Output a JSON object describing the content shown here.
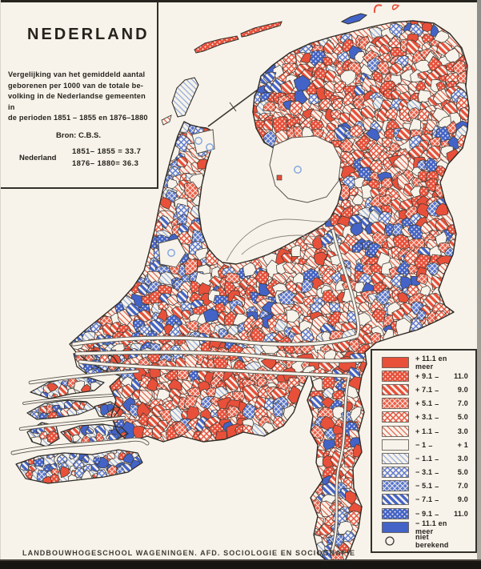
{
  "title_box": {
    "title": "NEDERLAND",
    "description_lines": [
      "Vergelijking van het gemiddeld aantal",
      "geborenen per 1000 van de totale be-",
      "volking in de Nederlandse gemeenten in",
      "de perioden  1851 – 1855  en 1876–1880"
    ],
    "source": "Bron: C.B.S.",
    "country_label": "Nederland",
    "stat_lines": [
      "1851– 1855 = 33.7",
      "1876– 1880=  36.3"
    ]
  },
  "legend": {
    "items": [
      {
        "pattern": "red-solid",
        "a": "+ 11.1 en meer",
        "sep": "",
        "b": ""
      },
      {
        "pattern": "red-dots",
        "a": "+ 9.1",
        "sep": "–",
        "b": "11.0"
      },
      {
        "pattern": "red-diag",
        "a": "+ 7.1",
        "sep": "–",
        "b": "9.0"
      },
      {
        "pattern": "red-cross",
        "a": "+ 5.1",
        "sep": "–",
        "b": "7.0"
      },
      {
        "pattern": "red-check",
        "a": "+ 3.1",
        "sep": "–",
        "b": "5.0"
      },
      {
        "pattern": "red-lt",
        "a": "+ 1.1",
        "sep": "–",
        "b": "3.0"
      },
      {
        "pattern": "white",
        "a": "−  1",
        "sep": "–",
        "b": "+  1"
      },
      {
        "pattern": "blue-lt",
        "a": "− 1.1",
        "sep": "–",
        "b": "3.0"
      },
      {
        "pattern": "blue-check",
        "a": "− 3.1",
        "sep": "–",
        "b": "5.0"
      },
      {
        "pattern": "blue-cross",
        "a": "− 5.1",
        "sep": "–",
        "b": "7.0"
      },
      {
        "pattern": "blue-diag",
        "a": "− 7.1",
        "sep": "–",
        "b": "9.0"
      },
      {
        "pattern": "blue-dots",
        "a": "− 9.1",
        "sep": "–",
        "b": "11.0"
      },
      {
        "pattern": "blue-solid",
        "a": "− 11.1 en meer",
        "sep": "",
        "b": ""
      },
      {
        "pattern": "circle",
        "a": "niet berekend",
        "sep": "",
        "b": ""
      }
    ]
  },
  "footer": {
    "credit": "LANDBOUWHOGESCHOOL WAGENINGEN. AFD. SOCIOLOGIE EN SOCIOGRAFIE"
  },
  "colors": {
    "red": "#e8503a",
    "red_mid": "#ec614b",
    "blue": "#4363c7",
    "blue_mid": "#5b78d0",
    "blue_light": "#8fa9dc",
    "cream": "#f7f3ea",
    "ink": "#26231e"
  }
}
